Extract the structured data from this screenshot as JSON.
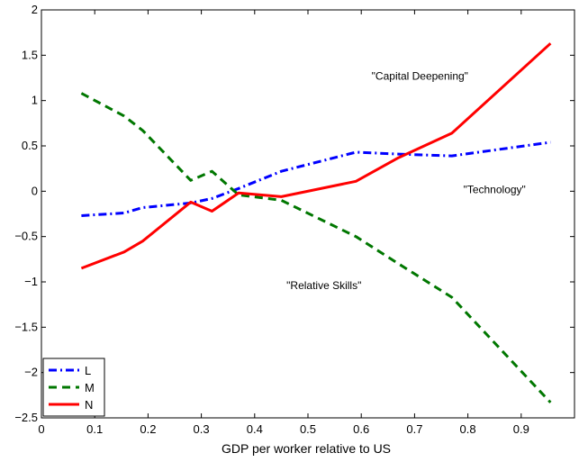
{
  "chart_data": {
    "type": "line",
    "title": "",
    "xlabel": "GDP per worker relative to US",
    "ylabel": "",
    "xlim": [
      0,
      1
    ],
    "ylim": [
      -2.5,
      2
    ],
    "xticks": [
      0,
      0.1,
      0.2,
      0.3,
      0.4,
      0.5,
      0.6,
      0.7,
      0.8,
      0.9
    ],
    "xtick_labels": [
      "0",
      "0.1",
      "0.2",
      "0.3",
      "0.4",
      "0.5",
      "0.6",
      "0.7",
      "0.8",
      "0.9"
    ],
    "yticks": [
      -2.5,
      -2,
      -1.5,
      -1,
      -0.5,
      0,
      0.5,
      1,
      1.5,
      2
    ],
    "ytick_labels": [
      "−2.5",
      "−2",
      "−1.5",
      "−1",
      "−0.5",
      "0",
      "0.5",
      "1",
      "1.5",
      "2"
    ],
    "grid": false,
    "legend_position": "bottom-left",
    "series": [
      {
        "name": "L",
        "color": "#0000ff",
        "style": "dashdot",
        "x": [
          0.075,
          0.155,
          0.19,
          0.28,
          0.32,
          0.37,
          0.45,
          0.59,
          0.67,
          0.77,
          0.955
        ],
        "y": [
          -0.27,
          -0.24,
          -0.18,
          -0.13,
          -0.08,
          0.03,
          0.22,
          0.43,
          0.41,
          0.39,
          0.54
        ]
      },
      {
        "name": "M",
        "color": "#007700",
        "style": "dashed",
        "x": [
          0.075,
          0.155,
          0.19,
          0.28,
          0.32,
          0.37,
          0.45,
          0.59,
          0.67,
          0.77,
          0.955
        ],
        "y": [
          1.08,
          0.83,
          0.67,
          0.12,
          0.22,
          -0.04,
          -0.1,
          -0.5,
          -0.8,
          -1.17,
          -2.33
        ]
      },
      {
        "name": "N",
        "color": "#ff0000",
        "style": "solid",
        "x": [
          0.075,
          0.155,
          0.19,
          0.28,
          0.32,
          0.37,
          0.45,
          0.59,
          0.67,
          0.77,
          0.955
        ],
        "y": [
          -0.85,
          -0.67,
          -0.55,
          -0.12,
          -0.22,
          -0.02,
          -0.06,
          0.11,
          0.37,
          0.64,
          1.63
        ]
      }
    ],
    "annotations": [
      {
        "text": "\"Capital Deepening\"",
        "x": 0.71,
        "y": 1.23
      },
      {
        "text": "\"Technology\"",
        "x": 0.85,
        "y": -0.02
      },
      {
        "text": "\"Relative Skills\"",
        "x": 0.53,
        "y": -1.08
      }
    ]
  }
}
